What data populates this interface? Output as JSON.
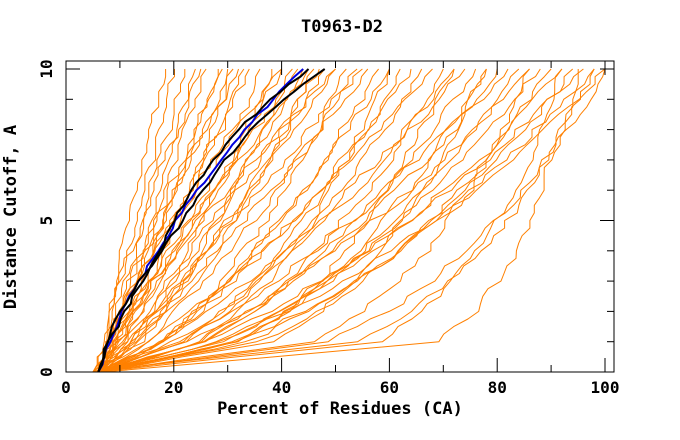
{
  "title": "T0963-D2",
  "chart_data": {
    "type": "line",
    "title": "T0963-D2",
    "xlabel": "Percent of Residues (CA)",
    "ylabel": "Distance Cutoff, A",
    "xlim": [
      0,
      100
    ],
    "ylim": [
      0,
      10
    ],
    "x_major_ticks": [
      0,
      20,
      40,
      60,
      80,
      100
    ],
    "x_tick_labels": [
      "0",
      "20",
      "40",
      "60",
      "80",
      "100"
    ],
    "x_minor_step": 10,
    "y_major_ticks": [
      0,
      5,
      10
    ],
    "y_tick_labels": [
      "0",
      "5",
      "10"
    ],
    "y_minor_step": 1,
    "grid": false,
    "legend": "none",
    "cutoffs": [
      0,
      1,
      2,
      3,
      4,
      5,
      6,
      7,
      8,
      9,
      10
    ],
    "note": "each curve lists percent-of-residues (x) at distance cutoffs 0..10 A",
    "series": [
      {
        "name": "models-orange",
        "color": "#ff8000",
        "stroke_width": 1,
        "jitter": 1.6,
        "curves": [
          [
            6,
            7,
            8,
            9,
            10,
            11,
            13,
            14,
            15,
            17,
            18
          ],
          [
            5,
            7,
            8,
            10,
            11,
            13,
            14,
            16,
            17,
            19,
            20
          ],
          [
            6,
            7,
            9,
            10,
            12,
            14,
            15,
            17,
            19,
            20,
            22
          ],
          [
            6,
            8,
            10,
            12,
            14,
            16,
            17,
            19,
            21,
            22,
            24
          ],
          [
            7,
            8,
            9,
            11,
            13,
            14,
            16,
            18,
            21,
            23,
            25
          ],
          [
            6,
            8,
            10,
            12,
            14,
            16,
            18,
            20,
            22,
            24,
            26
          ],
          [
            6,
            9,
            12,
            14,
            16,
            18,
            20,
            22,
            24,
            26,
            28
          ],
          [
            7,
            9,
            10,
            13,
            15,
            17,
            19,
            22,
            24,
            26,
            29
          ],
          [
            6,
            8,
            11,
            13,
            16,
            18,
            20,
            23,
            25,
            28,
            30
          ],
          [
            6,
            10,
            13,
            16,
            18,
            20,
            23,
            25,
            27,
            29,
            31
          ],
          [
            7,
            8,
            10,
            13,
            15,
            18,
            20,
            23,
            26,
            29,
            32
          ],
          [
            6,
            9,
            12,
            15,
            17,
            20,
            23,
            25,
            28,
            30,
            33
          ],
          [
            6,
            10,
            13,
            16,
            18,
            21,
            24,
            26,
            29,
            31,
            34
          ],
          [
            5,
            10,
            14,
            17,
            20,
            23,
            26,
            28,
            31,
            34,
            36
          ],
          [
            6,
            12,
            16,
            19,
            22,
            25,
            28,
            31,
            33,
            36,
            38
          ],
          [
            7,
            11,
            14,
            18,
            21,
            24,
            27,
            31,
            34,
            37,
            40
          ],
          [
            6,
            13,
            18,
            22,
            25,
            28,
            31,
            34,
            37,
            39,
            42
          ],
          [
            6,
            11,
            16,
            20,
            23,
            27,
            31,
            34,
            38,
            41,
            44
          ],
          [
            5,
            14,
            19,
            24,
            28,
            31,
            35,
            38,
            41,
            43,
            46
          ],
          [
            6,
            13,
            18,
            22,
            26,
            30,
            34,
            38,
            41,
            45,
            48
          ],
          [
            7,
            12,
            17,
            22,
            26,
            30,
            34,
            38,
            42,
            46,
            50
          ],
          [
            6,
            18,
            24,
            29,
            33,
            37,
            40,
            44,
            47,
            49,
            52
          ],
          [
            6,
            15,
            20,
            26,
            30,
            35,
            39,
            43,
            47,
            50,
            54
          ],
          [
            5,
            12,
            18,
            23,
            28,
            33,
            38,
            43,
            47,
            52,
            56
          ],
          [
            6,
            18,
            24,
            30,
            35,
            39,
            44,
            48,
            51,
            55,
            58
          ],
          [
            7,
            18,
            24,
            30,
            35,
            40,
            44,
            48,
            52,
            56,
            60
          ],
          [
            6,
            9,
            13,
            16,
            20,
            24,
            28,
            32,
            37,
            41,
            45
          ],
          [
            6,
            9,
            12,
            16,
            21,
            25,
            30,
            35,
            40,
            45,
            50
          ],
          [
            7,
            12,
            17,
            21,
            26,
            31,
            36,
            41,
            45,
            50,
            55
          ],
          [
            6,
            8,
            10,
            13,
            16,
            20,
            24,
            27,
            31,
            36,
            40
          ],
          [
            6,
            11,
            16,
            20,
            24,
            28,
            32,
            36,
            40,
            43,
            47
          ],
          [
            5,
            8,
            12,
            16,
            19,
            23,
            27,
            31,
            35,
            39,
            43
          ],
          [
            6,
            22,
            29,
            35,
            40,
            44,
            48,
            52,
            56,
            59,
            62
          ],
          [
            6,
            18,
            25,
            31,
            37,
            42,
            47,
            51,
            56,
            60,
            64
          ],
          [
            7,
            22,
            30,
            36,
            41,
            46,
            51,
            55,
            59,
            63,
            66
          ],
          [
            6,
            16,
            23,
            30,
            36,
            42,
            47,
            53,
            58,
            63,
            68
          ],
          [
            6,
            26,
            35,
            41,
            46,
            51,
            56,
            60,
            63,
            67,
            70
          ],
          [
            5,
            20,
            29,
            36,
            42,
            48,
            54,
            59,
            63,
            68,
            72
          ],
          [
            6,
            18,
            26,
            34,
            40,
            47,
            52,
            58,
            64,
            69,
            74
          ],
          [
            6,
            26,
            35,
            42,
            48,
            54,
            59,
            64,
            68,
            72,
            76
          ],
          [
            7,
            32,
            41,
            48,
            54,
            59,
            64,
            68,
            71,
            75,
            78
          ],
          [
            6,
            25,
            34,
            42,
            49,
            55,
            61,
            67,
            72,
            76,
            80
          ],
          [
            6,
            21,
            31,
            39,
            46,
            53,
            59,
            65,
            71,
            77,
            82
          ],
          [
            6,
            31,
            41,
            49,
            55,
            61,
            66,
            71,
            76,
            80,
            84
          ],
          [
            5,
            23,
            34,
            42,
            50,
            57,
            64,
            70,
            76,
            81,
            86
          ],
          [
            6,
            29,
            40,
            48,
            56,
            62,
            68,
            73,
            79,
            83,
            88
          ],
          [
            6,
            36,
            47,
            55,
            62,
            68,
            73,
            78,
            82,
            86,
            90
          ],
          [
            7,
            28,
            40,
            49,
            57,
            64,
            70,
            77,
            82,
            87,
            92
          ],
          [
            6,
            34,
            45,
            54,
            62,
            68,
            74,
            80,
            85,
            90,
            94
          ],
          [
            6,
            26,
            38,
            47,
            56,
            64,
            71,
            78,
            84,
            90,
            96
          ],
          [
            6,
            32,
            44,
            54,
            62,
            69,
            75,
            82,
            87,
            93,
            98
          ],
          [
            5,
            29,
            41,
            52,
            60,
            68,
            76,
            83,
            89,
            95,
            100
          ],
          [
            6,
            46,
            55,
            62,
            67,
            71,
            75,
            78,
            81,
            84,
            86
          ],
          [
            6,
            58,
            66,
            72,
            76,
            80,
            83,
            86,
            88,
            90,
            92
          ],
          [
            7,
            69,
            76,
            80,
            84,
            86,
            88,
            90,
            92,
            94,
            95
          ],
          [
            6,
            38,
            47,
            53,
            58,
            62,
            66,
            70,
            73,
            75,
            78
          ],
          [
            6,
            32,
            41,
            47,
            52,
            56,
            60,
            63,
            66,
            69,
            72
          ],
          [
            5,
            54,
            64,
            71,
            77,
            82,
            86,
            89,
            92,
            95,
            98
          ],
          [
            6,
            25,
            32,
            38,
            42,
            46,
            49,
            52,
            55,
            58,
            60
          ],
          [
            6,
            48,
            60,
            68,
            74,
            80,
            85,
            89,
            93,
            97,
            100
          ]
        ]
      },
      {
        "name": "model-blue",
        "color": "#0000dd",
        "stroke_width": 2,
        "jitter": 0.7,
        "curves": [
          [
            6,
            8,
            10.5,
            13.5,
            17,
            20.5,
            24.5,
            28.5,
            33,
            38.5,
            44
          ]
        ]
      },
      {
        "name": "model-black-1",
        "color": "#000000",
        "stroke_width": 2,
        "jitter": 0.7,
        "curves": [
          [
            6,
            8,
            11,
            14,
            17.5,
            20,
            23.5,
            27.5,
            32,
            38,
            45
          ]
        ]
      },
      {
        "name": "model-black-2",
        "color": "#000000",
        "stroke_width": 2,
        "jitter": 0.7,
        "curves": [
          [
            6,
            7.5,
            10,
            13.5,
            18,
            21.5,
            25.5,
            29.5,
            34.5,
            40.5,
            48
          ]
        ]
      }
    ]
  },
  "colors": {
    "background": "#ffffff",
    "axis": "#000000",
    "orange_models": "#ff8000",
    "blue_model": "#0000dd",
    "black_model": "#000000"
  }
}
